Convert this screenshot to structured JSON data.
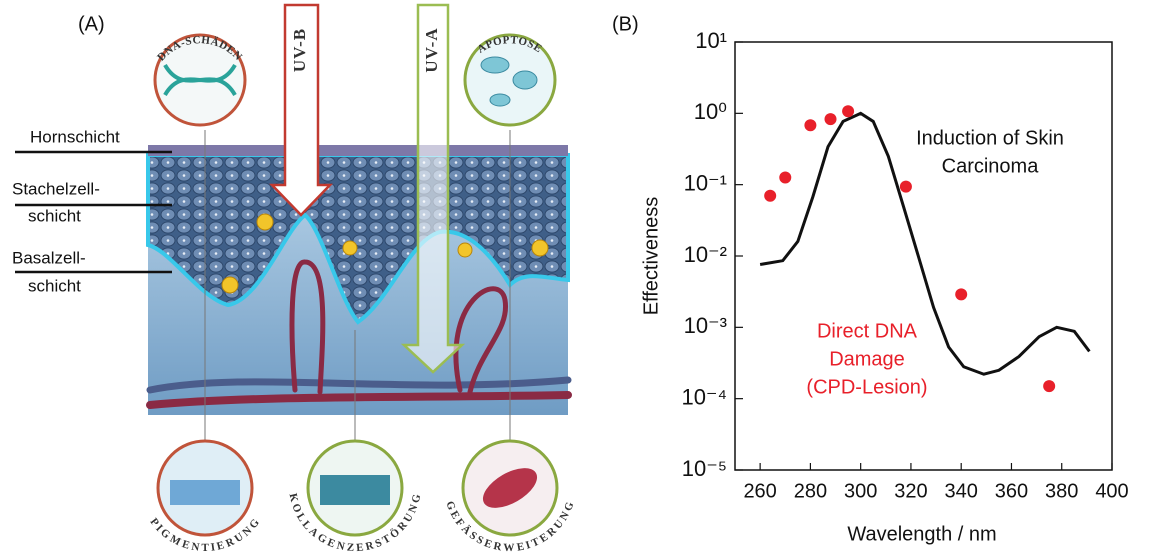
{
  "panel_a": {
    "label": "(A)",
    "layers": [
      {
        "lines": [
          "Hornschicht"
        ]
      },
      {
        "lines": [
          "Stachelzell-",
          "schicht"
        ]
      },
      {
        "lines": [
          "Basalzell-",
          "schicht"
        ]
      }
    ],
    "arrows": [
      "UV-B",
      "UV-A"
    ],
    "insets": [
      "DNA-SCHÄDEN",
      "APOPTOSE",
      "PIGMENTIERUNG",
      "KOLLAGENZERSTÖRUNG",
      "GEFÄSSERWEITERUNG"
    ]
  },
  "chart_data": {
    "type": "line",
    "panel_label": "(B)",
    "x_label": "Wavelength / nm",
    "y_label": "Effectiveness",
    "xlim": [
      250,
      400
    ],
    "xticks": [
      260,
      280,
      300,
      320,
      340,
      360,
      380,
      400
    ],
    "ylim": [
      1e-05,
      10
    ],
    "log_y": true,
    "yticks": [
      {
        "value": 10,
        "label": "10¹"
      },
      {
        "value": 1,
        "label": "10⁰"
      },
      {
        "value": 0.1,
        "label": "10⁻¹"
      },
      {
        "value": 0.01,
        "label": "10⁻²"
      },
      {
        "value": 0.001,
        "label": "10⁻³"
      },
      {
        "value": 0.0001,
        "label": "10⁻⁴"
      },
      {
        "value": 1e-05,
        "label": "10⁻⁵"
      }
    ],
    "series": [
      {
        "type": "line",
        "color": "#111111",
        "label": [
          "Induction of Skin",
          "Carcinoma"
        ],
        "x": [
          260,
          269,
          275,
          281,
          287,
          293,
          300,
          305,
          311,
          317,
          323,
          329,
          335,
          341,
          349,
          355,
          363,
          371,
          378,
          385,
          391
        ],
        "values": [
          0.0076,
          0.0086,
          0.016,
          0.068,
          0.34,
          0.77,
          1.0,
          0.77,
          0.25,
          0.05,
          0.0098,
          0.0019,
          0.00053,
          0.00028,
          0.00022,
          0.00025,
          0.00039,
          0.00074,
          0.001,
          0.00088,
          0.00046
        ]
      },
      {
        "type": "scatter",
        "color": "#e8202a",
        "label": [
          "Direct DNA",
          "Damage",
          "(CPD-Lesion)"
        ],
        "x": [
          264,
          270,
          280,
          288,
          295,
          318,
          340,
          375
        ],
        "values": [
          0.07,
          0.126,
          0.68,
          0.83,
          1.07,
          0.094,
          0.0029,
          0.00015
        ]
      }
    ]
  }
}
